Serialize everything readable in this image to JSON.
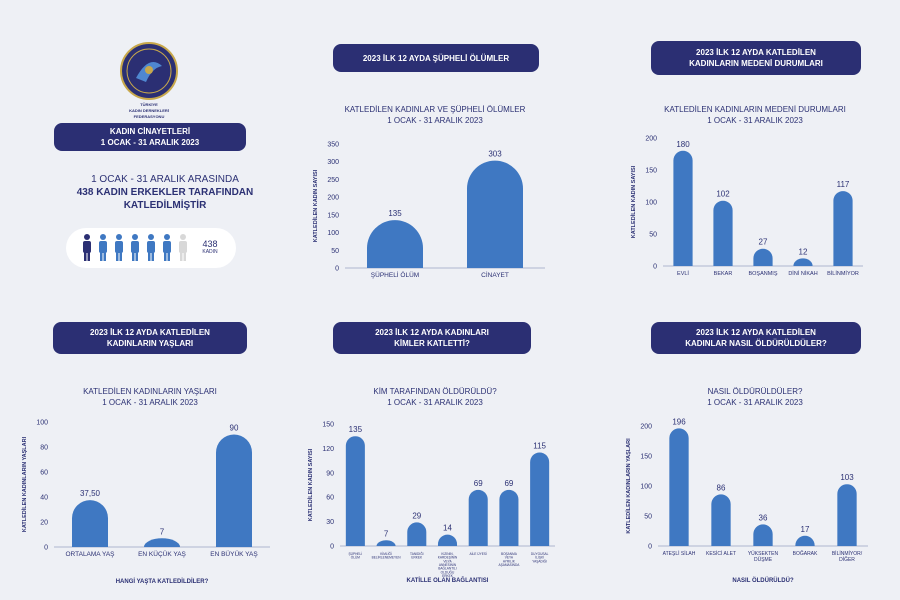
{
  "logo": {
    "lines": [
      "TÜRKİYE",
      "KADIN DERNEKLERİ",
      "FEDERASYONU"
    ]
  },
  "left": {
    "pill_line1": "KADIN CİNAYETLERİ",
    "pill_line2": "1 OCAK - 31 ARALIK 2023",
    "summary_line1": "1 OCAK - 31 ARALIK ARASINDA",
    "summary_line2": "438 KADIN ERKEKLER TARAFINDAN",
    "summary_line3": "KATLEDİLMİŞTİR",
    "count": "438",
    "count_label": "KADIN",
    "colors": {
      "dark": "#2b2f73",
      "mid": "#3f78c2",
      "light": "#d8d8d8"
    }
  },
  "panels": {
    "suspicious": {
      "pill1": "2023 İLK 12 AYDA ŞÜPHELİ ÖLÜMLER",
      "pill2": ""
    },
    "marital": {
      "pill1": "2023 İLK 12 AYDA KATLEDİLEN",
      "pill2": "KADINLARIN MEDENİ DURUMLARI"
    },
    "ages": {
      "pill1": "2023 İLK 12 AYDA  KATLEDİLEN",
      "pill2": "KADINLARIN YAŞLARI"
    },
    "who": {
      "pill1": "2023 İLK 12 AYDA KADINLARI",
      "pill2": "KİMLER KATLETTİ?"
    },
    "how": {
      "pill1": "2023 İLK 12 AYDA KATLEDİLEN",
      "pill2": "KADINLAR NASIL ÖLDÜRÜLDÜLER?"
    }
  },
  "chart_data": [
    {
      "id": "suspicious",
      "type": "bar",
      "title": "KATLEDİLEN KADINLAR VE ŞÜPHELİ ÖLÜMLER",
      "subtitle": "1 OCAK - 31 ARALIK 2023",
      "ylabel": "KATLEDİLEN KADIN SAYISI",
      "xlabel": "",
      "ylim": [
        0,
        350
      ],
      "yticks": [
        "0",
        "50",
        "100",
        "150",
        "200",
        "250",
        "300",
        "350"
      ],
      "categories": [
        "ŞÜPHELİ ÖLÜM",
        "CİNAYET"
      ],
      "values": [
        135,
        303
      ],
      "labels": [
        "135",
        "303"
      ],
      "color": "#3f78c2"
    },
    {
      "id": "marital",
      "type": "bar",
      "title": "KATLEDİLEN KADINLARIN MEDENİ DURUMLARI",
      "subtitle": "1 OCAK - 31 ARALIK 2023",
      "ylabel": "KATLEDİLEN KADIN SAYISI",
      "xlabel": "",
      "ylim": [
        0,
        200
      ],
      "yticks": [
        "0",
        "50",
        "100",
        "150",
        "200"
      ],
      "categories": [
        "EVLİ",
        "BEKAR",
        "BOŞANMIŞ",
        "DİNİ NİKAH",
        "BİLİNMİYOR"
      ],
      "values": [
        180,
        102,
        27,
        12,
        117
      ],
      "labels": [
        "180",
        "102",
        "27",
        "12",
        "117"
      ],
      "color": "#3f78c2"
    },
    {
      "id": "ages",
      "type": "bar",
      "title": "KATLEDİLEN KADINLARIN YAŞLARI",
      "subtitle": "1 OCAK - 31 ARALIK 2023",
      "ylabel": "KATLEDİLEN KADINLARIN YAŞLARI",
      "xlabel": "HANGİ YAŞTA KATLEDİLDİLER?",
      "ylim": [
        0,
        100
      ],
      "yticks": [
        "0",
        "20",
        "40",
        "60",
        "80",
        "100"
      ],
      "categories": [
        "ORTALAMA YAŞ",
        "EN KÜÇÜK YAŞ",
        "EN BÜYÜK YAŞ"
      ],
      "values": [
        37.5,
        7,
        90
      ],
      "labels": [
        "37,50",
        "7",
        "90"
      ],
      "color": "#3f78c2"
    },
    {
      "id": "who",
      "type": "bar",
      "title": "KİM TARAFINDAN ÖLDÜRÜLDÜ?",
      "subtitle": "1 OCAK - 31 ARALIK 2023",
      "ylabel": "KATLEDİLEN KADIN SAYISI",
      "xlabel": "KATİLLE OLAN BAĞLANTISI",
      "ylim": [
        0,
        150
      ],
      "yticks": [
        "0",
        "30",
        "60",
        "90",
        "120",
        "150"
      ],
      "categories": [
        "ŞÜPHELİ ÖLÜM",
        "KİMLİĞİ BELİRLENEMEYEN",
        "TANIDIĞI ERKEK",
        "KIZININ, KARDEŞİNİN VEYA ANNESİNİN BAĞLANTILI OLDUĞU ERKEK",
        "AİLE ÜYESİ",
        "BOŞANMA VEYA AYRILIK AŞAMASINDA",
        "DUYGUSAL İLİŞKİ YAŞADIĞI"
      ],
      "values": [
        135,
        7,
        29,
        14,
        69,
        69,
        115
      ],
      "labels": [
        "135",
        "7",
        "29",
        "14",
        "69",
        "69",
        "115"
      ],
      "color": "#3f78c2"
    },
    {
      "id": "how",
      "type": "bar",
      "title": "NASIL ÖLDÜRÜLDÜLER?",
      "subtitle": "1 OCAK - 31 ARALIK 2023",
      "ylabel": "KATLEDİLEN KADINLARIN YAŞLARI",
      "xlabel": "NASIL ÖLDÜRÜLDÜ?",
      "ylim": [
        0,
        200
      ],
      "yticks": [
        "0",
        "50",
        "100",
        "150",
        "200"
      ],
      "categories": [
        "ATEŞLİ SİLAH",
        "KESİCİ ALET",
        "YÜKSEKTEN DÜŞME",
        "BOĞARAK",
        "BİLİNMİYOR/ DİĞER"
      ],
      "values": [
        196,
        86,
        36,
        17,
        103
      ],
      "labels": [
        "196",
        "86",
        "36",
        "17",
        "103"
      ],
      "color": "#3f78c2"
    }
  ]
}
